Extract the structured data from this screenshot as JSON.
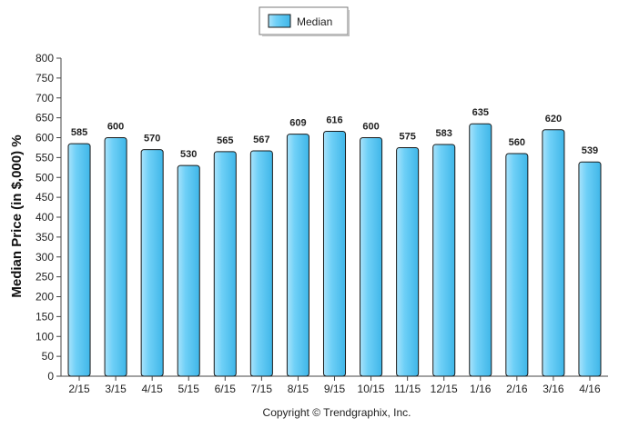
{
  "chart_data": {
    "type": "bar",
    "title": "",
    "xlabel": "",
    "ylabel": "Median Price (in $,000) %",
    "ylim": [
      0,
      800
    ],
    "yticks": [
      0,
      50,
      100,
      150,
      200,
      250,
      300,
      350,
      400,
      450,
      500,
      550,
      600,
      650,
      700,
      750,
      800
    ],
    "grid": false,
    "legend_position": "top-center",
    "categories": [
      "2/15",
      "3/15",
      "4/15",
      "5/15",
      "6/15",
      "7/15",
      "8/15",
      "9/15",
      "10/15",
      "11/15",
      "12/15",
      "1/16",
      "2/16",
      "3/16",
      "4/16"
    ],
    "series": [
      {
        "name": "Median",
        "color": "#5bc8f5",
        "values": [
          585,
          600,
          570,
          530,
          565,
          567,
          609,
          616,
          600,
          575,
          583,
          635,
          560,
          620,
          539
        ]
      }
    ]
  },
  "footer": {
    "copyright": "Copyright © Trendgraphix, Inc."
  }
}
